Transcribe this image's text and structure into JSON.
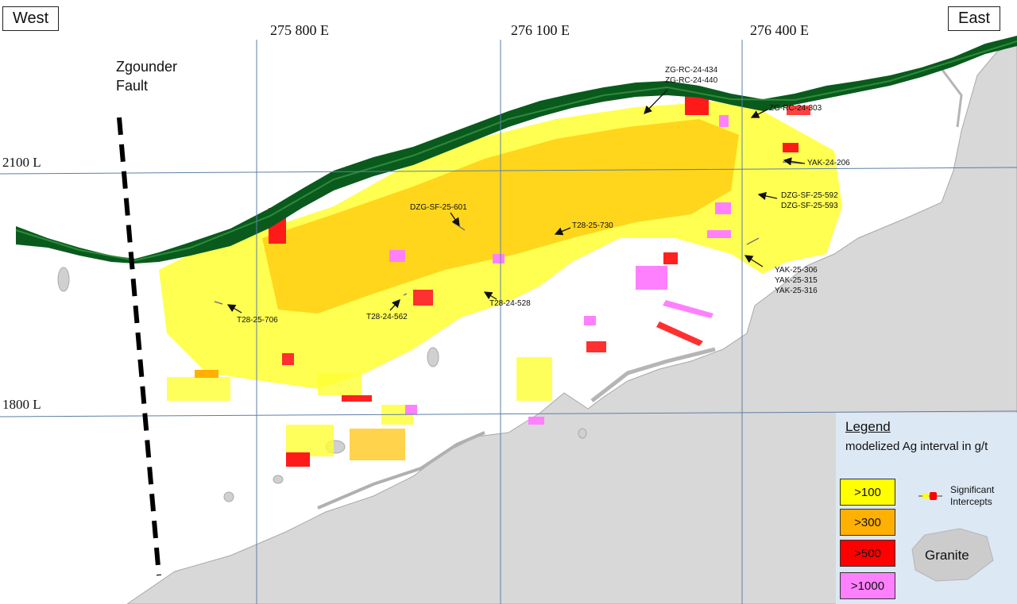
{
  "directions": {
    "west": "West",
    "east": "East"
  },
  "eastings": [
    "275 800 E",
    "276 100 E",
    "276 400 E"
  ],
  "levels": [
    "2100 L",
    "1800 L"
  ],
  "fault": {
    "line1": "Zgounder",
    "line2": "Fault"
  },
  "drillholes": [
    [
      "ZG-RC-24-434",
      "ZG-RC-24-440"
    ],
    [
      "ZG-RC-24-303"
    ],
    [
      "YAK-24-206"
    ],
    [
      "DZG-SF-25-592",
      "DZG-SF-25-593"
    ],
    [
      "DZG-SF-25-601"
    ],
    [
      "T28-25-730"
    ],
    [
      "YAK-25-306",
      "YAK-25-315",
      "YAK-25-316"
    ],
    [
      "T28-25-706"
    ],
    [
      "T28-24-562"
    ],
    [
      "T28-24-528"
    ]
  ],
  "legend": {
    "title": "Legend",
    "subtitle": "modelized Ag interval in g/t",
    "grades": [
      {
        "label": ">100",
        "color": "#ffff00"
      },
      {
        "label": ">300",
        "color": "#ffb000"
      },
      {
        "label": ">500",
        "color": "#ff0000"
      },
      {
        "label": ">1000",
        "color": "#ff80ff"
      }
    ],
    "intercepts": {
      "line1": "Significant",
      "line2": "Intercepts"
    },
    "granite": "Granite"
  },
  "colors": {
    "topography": "#0a5a1e",
    "granite": "#d9d9d9",
    "grid": "#5b7fa8",
    "legend_bg": "#dce8f3"
  }
}
